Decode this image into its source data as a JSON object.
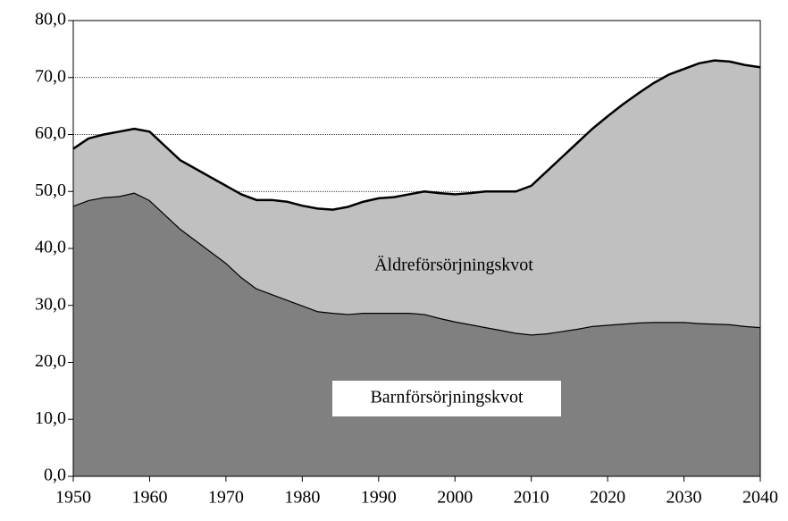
{
  "chart_data": {
    "type": "stacked_area",
    "x": [
      1950,
      1952,
      1954,
      1956,
      1958,
      1960,
      1962,
      1964,
      1966,
      1968,
      1970,
      1972,
      1974,
      1976,
      1978,
      1980,
      1982,
      1984,
      1986,
      1988,
      1990,
      1992,
      1994,
      1996,
      1998,
      2000,
      2002,
      2004,
      2006,
      2008,
      2010,
      2012,
      2014,
      2016,
      2018,
      2020,
      2022,
      2024,
      2026,
      2028,
      2030,
      2032,
      2034,
      2036,
      2038,
      2040
    ],
    "series": [
      {
        "name": "Barnförsörjningskvot",
        "color": "#808080",
        "values": [
          47.5,
          48.5,
          49.0,
          49.2,
          49.8,
          48.5,
          46,
          43.5,
          41.5,
          39.5,
          37.5,
          35,
          33,
          32,
          31,
          30,
          29,
          28.7,
          28.5,
          28.7,
          28.7,
          28.7,
          28.7,
          28.5,
          27.8,
          27.2,
          26.7,
          26.2,
          25.7,
          25.2,
          24.9,
          25.1,
          25.5,
          25.9,
          26.4,
          26.6,
          26.8,
          27,
          27.1,
          27.1,
          27.1,
          26.9,
          26.8,
          26.7,
          26.4,
          26.2
        ]
      },
      {
        "name": "Äldreförsörjningskvot",
        "color": "#c0c0c0",
        "values": [
          10,
          10.8,
          11,
          11.3,
          11.2,
          12,
          12,
          12,
          12.5,
          13,
          13.5,
          14.5,
          15.5,
          16.5,
          17.2,
          17.5,
          18,
          18.1,
          18.8,
          19.5,
          20.1,
          20.3,
          20.8,
          21.5,
          21.9,
          22.3,
          23,
          23.8,
          24.3,
          24.8,
          26.1,
          28.4,
          30.5,
          32.6,
          34.6,
          36.6,
          38.5,
          40.2,
          41.9,
          43.4,
          44.4,
          45.6,
          46.2,
          46.1,
          45.8,
          45.6
        ]
      }
    ],
    "xlim": [
      1950,
      2040
    ],
    "xticks": [
      1950,
      1960,
      1970,
      1980,
      1990,
      2000,
      2010,
      2020,
      2030,
      2040
    ],
    "ylim": [
      0,
      80
    ],
    "yticks": [
      {
        "value": 0,
        "label": "0,0"
      },
      {
        "value": 10,
        "label": "10,0"
      },
      {
        "value": 20,
        "label": "20,0"
      },
      {
        "value": 30,
        "label": "30,0"
      },
      {
        "value": 40,
        "label": "40,0"
      },
      {
        "value": 50,
        "label": "50,0"
      },
      {
        "value": 60,
        "label": "60,0"
      },
      {
        "value": 70,
        "label": "70,0"
      },
      {
        "value": 80,
        "label": "80,0"
      }
    ],
    "grid": true
  }
}
